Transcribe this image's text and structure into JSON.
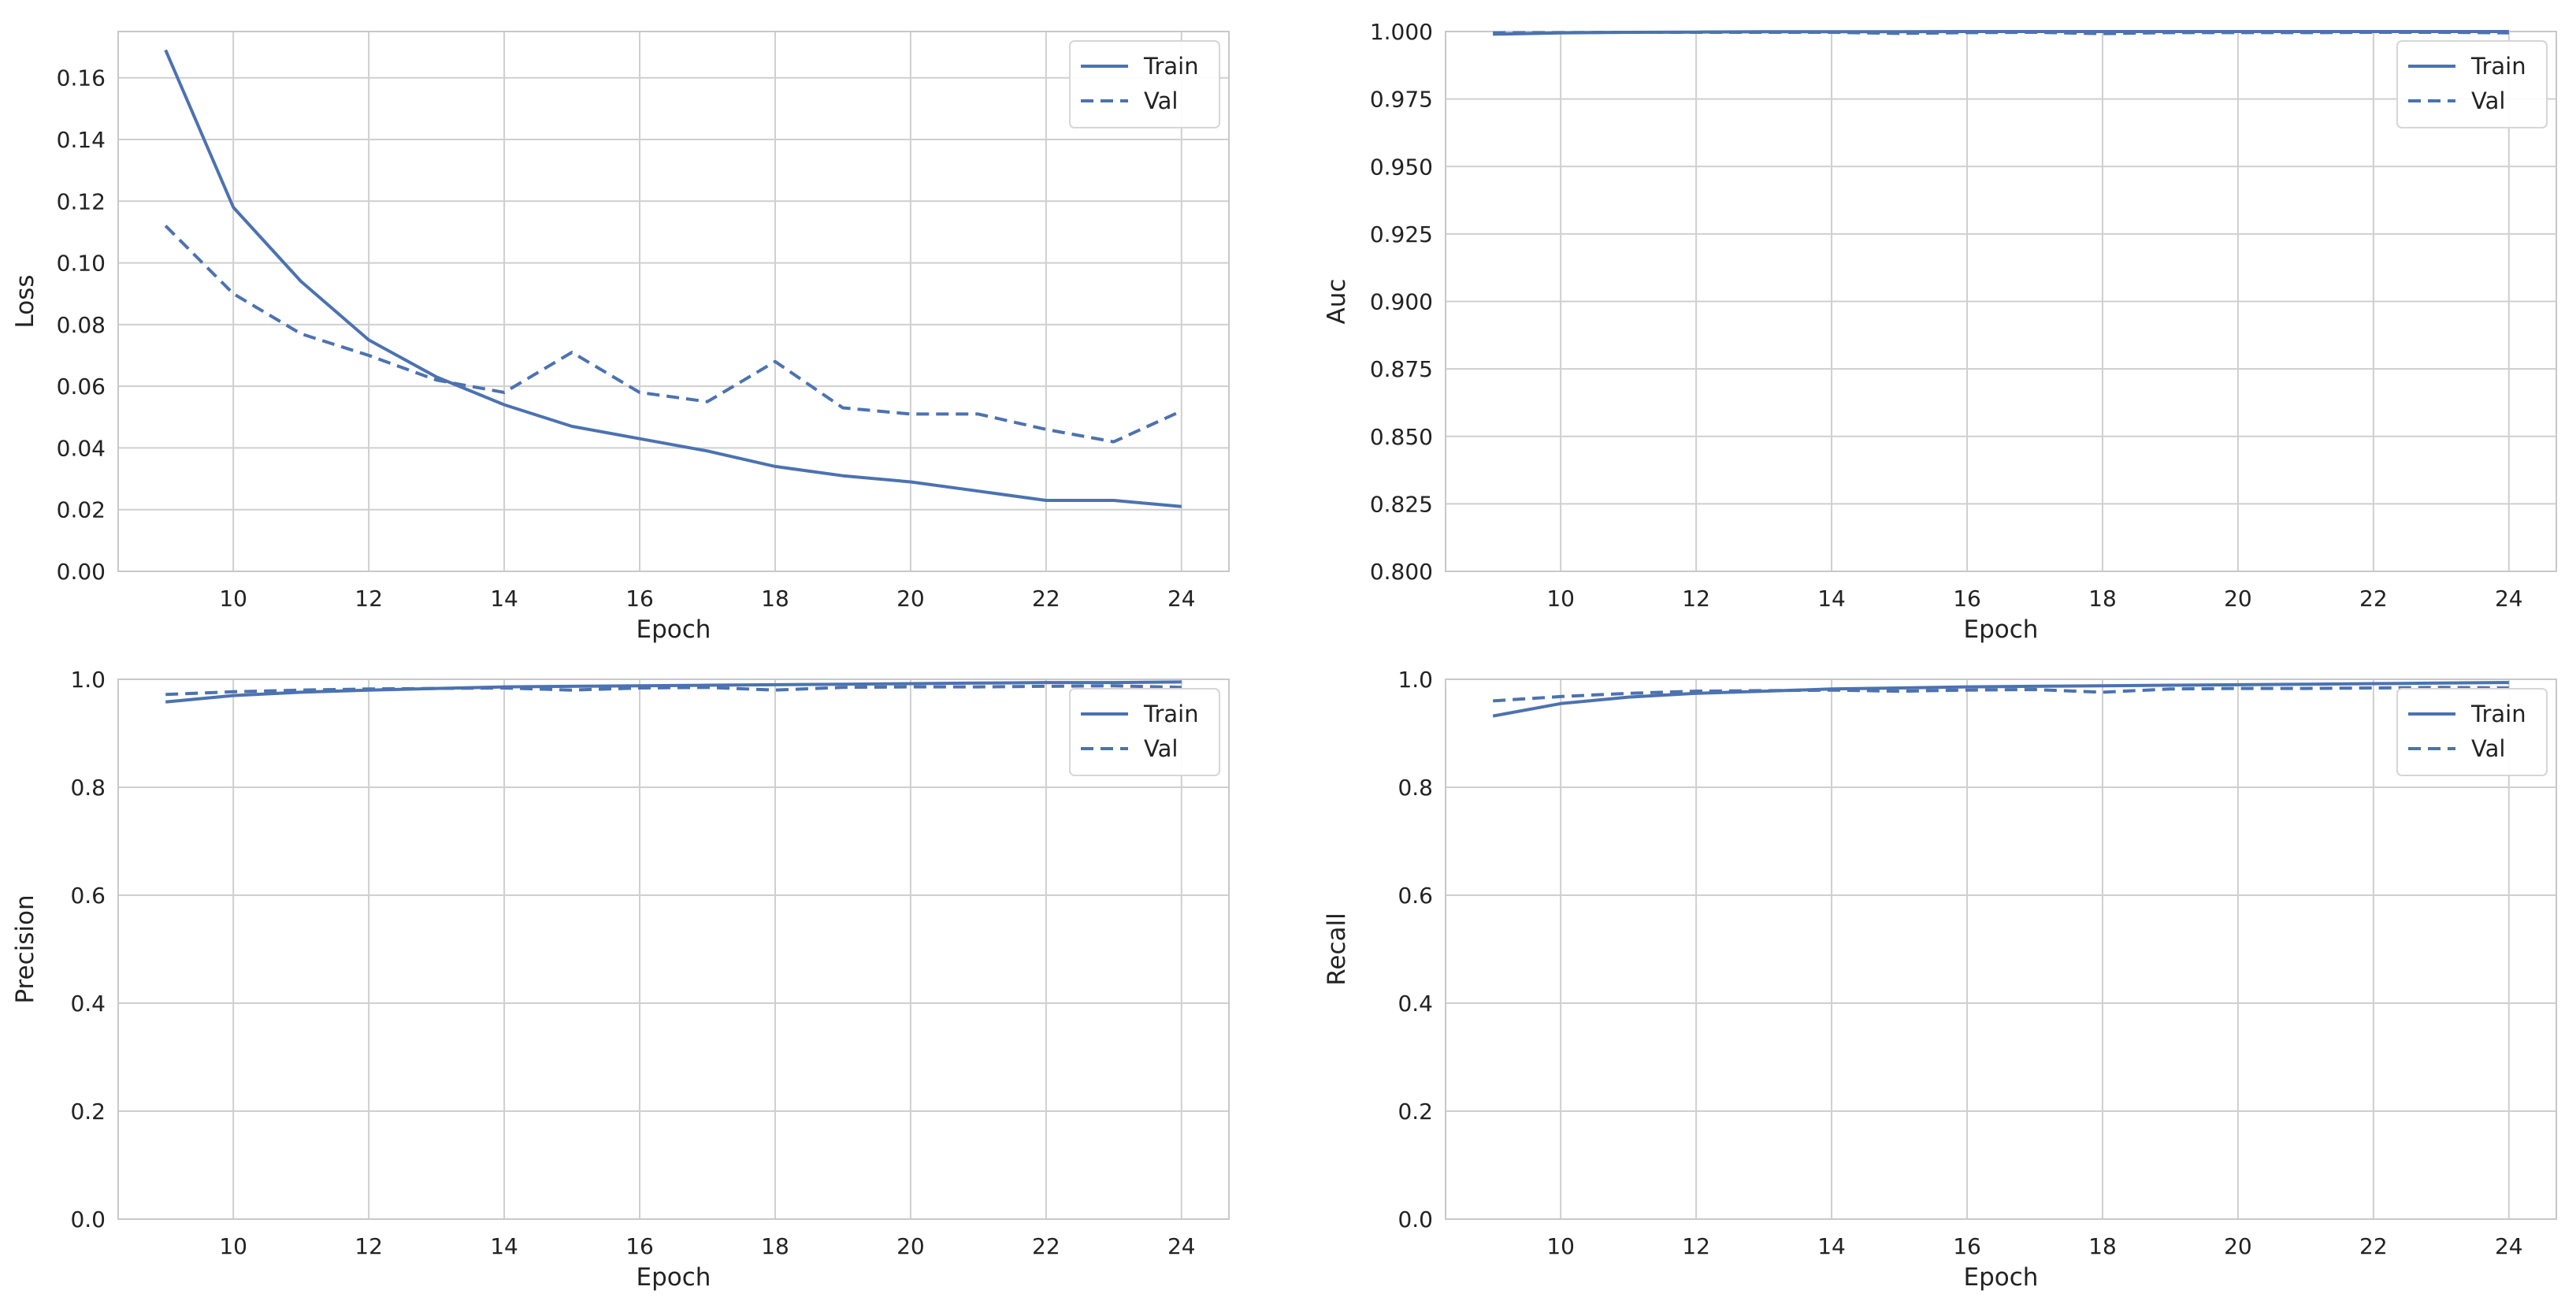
{
  "colors": {
    "series": "#4c72b0",
    "grid": "#cfcfcf",
    "spine": "#c8c8c8",
    "background": "#ffffff"
  },
  "chart_data": [
    {
      "type": "line",
      "xlabel": "Epoch",
      "ylabel": "Loss",
      "xlim": [
        8.3,
        24.7
      ],
      "ylim": [
        0,
        0.175
      ],
      "xticks": [
        "10",
        "12",
        "14",
        "16",
        "18",
        "20",
        "22",
        "24"
      ],
      "yticks": [
        "0.00",
        "0.02",
        "0.04",
        "0.06",
        "0.08",
        "0.10",
        "0.12",
        "0.14",
        "0.16"
      ],
      "grid": true,
      "legend": "top-right",
      "x": [
        9,
        10,
        11,
        12,
        13,
        14,
        15,
        16,
        17,
        18,
        19,
        20,
        21,
        22,
        23,
        24
      ],
      "series": [
        {
          "name": "Train",
          "style": "solid",
          "values": [
            0.169,
            0.118,
            0.094,
            0.075,
            0.063,
            0.054,
            0.047,
            0.043,
            0.039,
            0.034,
            0.031,
            0.029,
            0.026,
            0.023,
            0.023,
            0.021
          ]
        },
        {
          "name": "Val",
          "style": "dashed",
          "values": [
            0.112,
            0.09,
            0.077,
            0.07,
            0.062,
            0.058,
            0.071,
            0.058,
            0.055,
            0.068,
            0.053,
            0.051,
            0.051,
            0.046,
            0.042,
            0.052
          ]
        }
      ]
    },
    {
      "type": "line",
      "xlabel": "Epoch",
      "ylabel": "Auc",
      "xlim": [
        8.3,
        24.7
      ],
      "ylim": [
        0.8,
        1.0
      ],
      "xticks": [
        "10",
        "12",
        "14",
        "16",
        "18",
        "20",
        "22",
        "24"
      ],
      "yticks": [
        "0.800",
        "0.825",
        "0.850",
        "0.875",
        "0.900",
        "0.925",
        "0.950",
        "0.975",
        "1.000"
      ],
      "grid": true,
      "legend": "top-right",
      "x": [
        9,
        10,
        11,
        12,
        13,
        14,
        15,
        16,
        17,
        18,
        19,
        20,
        21,
        22,
        23,
        24
      ],
      "series": [
        {
          "name": "Train",
          "style": "solid",
          "values": [
            0.999,
            0.9995,
            0.9997,
            0.9998,
            0.9999,
            0.9999,
            0.9999,
            1.0,
            1.0,
            1.0,
            1.0,
            1.0,
            1.0,
            1.0,
            1.0,
            1.0
          ]
        },
        {
          "name": "Val",
          "style": "dashed",
          "values": [
            0.9995,
            0.9996,
            0.9997,
            0.9997,
            0.9997,
            0.9997,
            0.9993,
            0.9996,
            0.9997,
            0.9992,
            0.9996,
            0.9996,
            0.9996,
            0.9997,
            0.9997,
            0.9995
          ]
        }
      ]
    },
    {
      "type": "line",
      "xlabel": "Epoch",
      "ylabel": "Precision",
      "xlim": [
        8.3,
        24.7
      ],
      "ylim": [
        0,
        1.0
      ],
      "xticks": [
        "10",
        "12",
        "14",
        "16",
        "18",
        "20",
        "22",
        "24"
      ],
      "yticks": [
        "0.0",
        "0.2",
        "0.4",
        "0.6",
        "0.8",
        "1.0"
      ],
      "grid": true,
      "legend": "top-right",
      "x": [
        9,
        10,
        11,
        12,
        13,
        14,
        15,
        16,
        17,
        18,
        19,
        20,
        21,
        22,
        23,
        24
      ],
      "series": [
        {
          "name": "Train",
          "style": "solid",
          "values": [
            0.958,
            0.97,
            0.976,
            0.98,
            0.983,
            0.986,
            0.987,
            0.988,
            0.989,
            0.99,
            0.991,
            0.992,
            0.993,
            0.994,
            0.994,
            0.995
          ]
        },
        {
          "name": "Val",
          "style": "dashed",
          "values": [
            0.972,
            0.977,
            0.98,
            0.982,
            0.983,
            0.984,
            0.98,
            0.984,
            0.985,
            0.98,
            0.985,
            0.986,
            0.986,
            0.987,
            0.988,
            0.985
          ]
        }
      ]
    },
    {
      "type": "line",
      "xlabel": "Epoch",
      "ylabel": "Recall",
      "xlim": [
        8.3,
        24.7
      ],
      "ylim": [
        0,
        1.0
      ],
      "xticks": [
        "10",
        "12",
        "14",
        "16",
        "18",
        "20",
        "22",
        "24"
      ],
      "yticks": [
        "0.0",
        "0.2",
        "0.4",
        "0.6",
        "0.8",
        "1.0"
      ],
      "grid": true,
      "legend": "top-right",
      "x": [
        9,
        10,
        11,
        12,
        13,
        14,
        15,
        16,
        17,
        18,
        19,
        20,
        21,
        22,
        23,
        24
      ],
      "series": [
        {
          "name": "Train",
          "style": "solid",
          "values": [
            0.932,
            0.955,
            0.967,
            0.974,
            0.978,
            0.982,
            0.984,
            0.986,
            0.987,
            0.988,
            0.989,
            0.99,
            0.991,
            0.992,
            0.993,
            0.994
          ]
        },
        {
          "name": "Val",
          "style": "dashed",
          "values": [
            0.96,
            0.968,
            0.974,
            0.978,
            0.979,
            0.98,
            0.978,
            0.98,
            0.981,
            0.976,
            0.982,
            0.983,
            0.983,
            0.984,
            0.985,
            0.984
          ]
        }
      ]
    }
  ]
}
